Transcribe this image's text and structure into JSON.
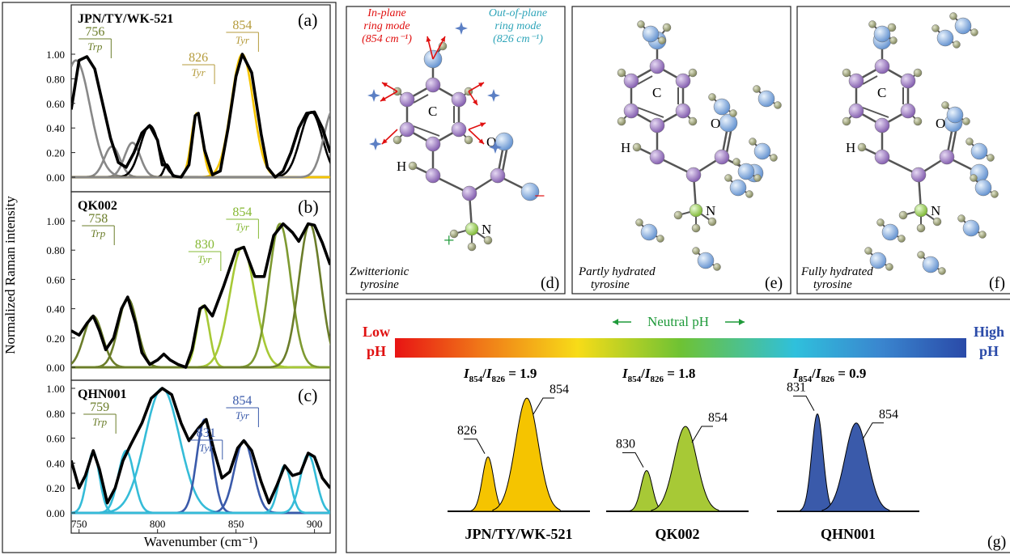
{
  "colors": {
    "black": "#000000",
    "trp_grey": "#888888",
    "tyr_yellow": "#f5c400",
    "olive": "#6b7d2a",
    "lightgreen": "#a7c936",
    "midgreen": "#7e9a31",
    "cyan": "#35bcd8",
    "navy": "#3a5aaa",
    "atom_purple": "#9b78c0",
    "atom_blue": "#8fb4df",
    "atom_green": "#a6d65c",
    "atom_h": "#9aa074",
    "red": "#e01010",
    "teal": "#2fa5b9",
    "neutral_green": "#1f9a3a"
  },
  "axis": {
    "ylabel": "Normalized Raman intensity",
    "xlabel": "Wavenumber (cm⁻¹)",
    "xticks": [
      "750",
      "800",
      "850",
      "900"
    ],
    "yticks": [
      "0.00",
      "0.20",
      "0.40",
      "0.60",
      "0.80",
      "1.00"
    ]
  },
  "chart_data": [
    {
      "type": "line",
      "panel": "(a)",
      "title": "JPN/TY/WK-521",
      "xlabel": "",
      "ylabel": "Normalized Raman intensity",
      "xlim": [
        745,
        910
      ],
      "ylim": [
        0,
        1.1
      ],
      "grid": false,
      "envelope": [
        [
          745,
          0.55
        ],
        [
          750,
          0.95
        ],
        [
          755,
          0.98
        ],
        [
          760,
          0.88
        ],
        [
          765,
          0.6
        ],
        [
          770,
          0.32
        ],
        [
          775,
          0.12
        ],
        [
          780,
          0.08
        ],
        [
          785,
          0.2
        ],
        [
          790,
          0.36
        ],
        [
          795,
          0.42
        ],
        [
          800,
          0.3
        ],
        [
          803,
          0.1
        ],
        [
          806,
          0.1
        ],
        [
          810,
          0.01
        ],
        [
          815,
          0.0
        ],
        [
          820,
          0.1
        ],
        [
          824,
          0.5
        ],
        [
          826,
          0.52
        ],
        [
          830,
          0.22
        ],
        [
          835,
          0.02
        ],
        [
          840,
          0.05
        ],
        [
          845,
          0.4
        ],
        [
          850,
          0.82
        ],
        [
          854,
          1.0
        ],
        [
          860,
          0.85
        ],
        [
          866,
          0.35
        ],
        [
          870,
          0.08
        ],
        [
          875,
          0.0
        ],
        [
          880,
          0.05
        ],
        [
          885,
          0.2
        ],
        [
          890,
          0.4
        ],
        [
          895,
          0.52
        ],
        [
          900,
          0.53
        ],
        [
          905,
          0.4
        ],
        [
          910,
          0.2
        ]
      ],
      "labels": [
        {
          "wavenumber": "756",
          "assignment": "Trp"
        },
        {
          "wavenumber": "826",
          "assignment": "Tyr"
        },
        {
          "wavenumber": "854",
          "assignment": "Tyr"
        }
      ],
      "bands": [
        {
          "center": 748,
          "height": 0.95,
          "width": 9,
          "color": "trp_grey"
        },
        {
          "center": 771,
          "height": 0.25,
          "width": 5,
          "color": "trp_grey"
        },
        {
          "center": 784,
          "height": 0.28,
          "width": 5,
          "color": "trp_grey"
        },
        {
          "center": 795,
          "height": 0.42,
          "width": 6,
          "color": "black"
        },
        {
          "center": 806,
          "height": 0.1,
          "width": 2,
          "color": "black"
        },
        {
          "center": 825,
          "height": 0.52,
          "width": 3.5,
          "color": "tyr_yellow"
        },
        {
          "center": 854,
          "height": 1.0,
          "width": 7,
          "color": "tyr_yellow"
        },
        {
          "center": 898,
          "height": 0.53,
          "width": 7,
          "color": "black"
        },
        {
          "center": 912,
          "height": 0.55,
          "width": 6,
          "color": "trp_grey"
        }
      ]
    },
    {
      "type": "line",
      "panel": "(b)",
      "title": "QK002",
      "xlabel": "",
      "ylabel": "Normalized Raman intensity",
      "xlim": [
        745,
        910
      ],
      "ylim": [
        0,
        1.1
      ],
      "grid": false,
      "envelope": [
        [
          745,
          0.25
        ],
        [
          750,
          0.22
        ],
        [
          755,
          0.3
        ],
        [
          759,
          0.35
        ],
        [
          763,
          0.25
        ],
        [
          767,
          0.12
        ],
        [
          772,
          0.2
        ],
        [
          777,
          0.4
        ],
        [
          781,
          0.48
        ],
        [
          786,
          0.3
        ],
        [
          790,
          0.1
        ],
        [
          795,
          0.02
        ],
        [
          800,
          0.05
        ],
        [
          804,
          0.09
        ],
        [
          808,
          0.05
        ],
        [
          813,
          0.02
        ],
        [
          818,
          0.0
        ],
        [
          822,
          0.12
        ],
        [
          827,
          0.4
        ],
        [
          830,
          0.42
        ],
        [
          835,
          0.35
        ],
        [
          842,
          0.55
        ],
        [
          850,
          0.8
        ],
        [
          855,
          0.82
        ],
        [
          862,
          0.62
        ],
        [
          868,
          0.62
        ],
        [
          874,
          0.9
        ],
        [
          880,
          0.98
        ],
        [
          886,
          0.92
        ],
        [
          890,
          0.86
        ],
        [
          896,
          0.98
        ],
        [
          900,
          0.97
        ],
        [
          905,
          0.85
        ],
        [
          910,
          0.7
        ]
      ],
      "labels": [
        {
          "wavenumber": "758",
          "assignment": "Trp"
        },
        {
          "wavenumber": "830",
          "assignment": "Tyr"
        },
        {
          "wavenumber": "854",
          "assignment": "Tyr"
        }
      ],
      "bands": [
        {
          "center": 759,
          "height": 0.35,
          "width": 6,
          "color": "olive"
        },
        {
          "center": 781,
          "height": 0.47,
          "width": 6,
          "color": "olive"
        },
        {
          "center": 829,
          "height": 0.42,
          "width": 4,
          "color": "lightgreen"
        },
        {
          "center": 854,
          "height": 0.82,
          "width": 8,
          "color": "lightgreen"
        },
        {
          "center": 878,
          "height": 0.98,
          "width": 7,
          "color": "midgreen"
        },
        {
          "center": 897,
          "height": 0.98,
          "width": 7,
          "color": "olive"
        }
      ]
    },
    {
      "type": "line",
      "panel": "(c)",
      "title": "QHN001",
      "xlabel": "Wavenumber (cm⁻¹)",
      "ylabel": "Normalized Raman intensity",
      "xlim": [
        745,
        910
      ],
      "ylim": [
        0,
        1.1
      ],
      "grid": false,
      "envelope": [
        [
          745,
          0.42
        ],
        [
          750,
          0.2
        ],
        [
          754,
          0.3
        ],
        [
          759,
          0.5
        ],
        [
          763,
          0.35
        ],
        [
          768,
          0.08
        ],
        [
          773,
          0.2
        ],
        [
          778,
          0.42
        ],
        [
          783,
          0.55
        ],
        [
          790,
          0.72
        ],
        [
          796,
          0.92
        ],
        [
          803,
          1.0
        ],
        [
          809,
          0.95
        ],
        [
          815,
          0.72
        ],
        [
          820,
          0.58
        ],
        [
          826,
          0.68
        ],
        [
          831,
          0.75
        ],
        [
          836,
          0.5
        ],
        [
          841,
          0.28
        ],
        [
          846,
          0.33
        ],
        [
          851,
          0.52
        ],
        [
          855,
          0.58
        ],
        [
          860,
          0.5
        ],
        [
          866,
          0.25
        ],
        [
          871,
          0.08
        ],
        [
          876,
          0.22
        ],
        [
          881,
          0.38
        ],
        [
          886,
          0.3
        ],
        [
          891,
          0.32
        ],
        [
          896,
          0.48
        ],
        [
          900,
          0.45
        ],
        [
          905,
          0.28
        ],
        [
          910,
          0.2
        ]
      ],
      "labels": [
        {
          "wavenumber": "759",
          "assignment": "Trp"
        },
        {
          "wavenumber": "831",
          "assignment": "Tyr"
        },
        {
          "wavenumber": "854",
          "assignment": "Tyr"
        }
      ],
      "bands": [
        {
          "center": 759,
          "height": 0.49,
          "width": 4,
          "color": "cyan"
        },
        {
          "center": 780,
          "height": 0.5,
          "width": 5,
          "color": "cyan"
        },
        {
          "center": 803,
          "height": 1.0,
          "width": 11,
          "color": "cyan"
        },
        {
          "center": 830,
          "height": 0.75,
          "width": 5,
          "color": "navy"
        },
        {
          "center": 855,
          "height": 0.58,
          "width": 6,
          "color": "navy"
        },
        {
          "center": 881,
          "height": 0.38,
          "width": 4,
          "color": "cyan"
        },
        {
          "center": 896,
          "height": 0.47,
          "width": 5,
          "color": "cyan"
        }
      ]
    }
  ],
  "panels": {
    "d": {
      "letter": "(d)",
      "caption": [
        "Zwitterionic",
        "tyrosine"
      ],
      "in_plane": [
        "In-plane",
        "ring mode",
        "(854 cm⁻¹)"
      ],
      "out_plane": [
        "Out-of-plane",
        "ring mode",
        "(826 cm⁻¹)"
      ],
      "atoms": {
        "C": "C",
        "O": "O",
        "H": "H",
        "N": "N",
        "plus": "+",
        "minus": "−"
      }
    },
    "e": {
      "letter": "(e)",
      "caption": [
        "Partly hydrated",
        "tyrosine"
      ],
      "atoms": {
        "C": "C",
        "O": "O",
        "H": "H",
        "N": "N"
      }
    },
    "f": {
      "letter": "(f)",
      "caption": [
        "Fully hydrated",
        "tyrosine"
      ],
      "atoms": {
        "C": "C",
        "O": "O",
        "H": "H",
        "N": "N"
      }
    },
    "g": {
      "letter": "(g)",
      "low": [
        "Low",
        "pH"
      ],
      "high": [
        "High",
        "pH"
      ],
      "neutral": "Neutral pH",
      "samples": [
        {
          "name": "JPN/TY/WK-521",
          "ratio": "= 1.9",
          "peak_low": "826",
          "peak_high": "854",
          "h_low": 0.48,
          "h_high": 1.0,
          "color": "tyr_yellow"
        },
        {
          "name": "QK002",
          "ratio": "= 1.8",
          "peak_low": "830",
          "peak_high": "854",
          "h_low": 0.36,
          "h_high": 0.75,
          "color": "lightgreen"
        },
        {
          "name": "QHN001",
          "ratio": "= 0.9",
          "peak_low": "831",
          "peak_high": "854",
          "h_low": 0.86,
          "h_high": 0.78,
          "color": "navy"
        }
      ],
      "ratio_prefix": {
        "I": "I",
        "sub_a": "854",
        "sub_b": "826"
      }
    }
  }
}
